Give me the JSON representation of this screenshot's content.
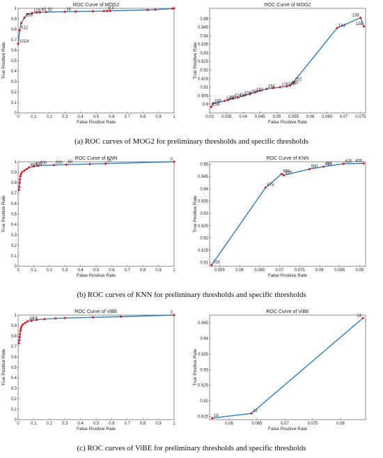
{
  "captions": {
    "a": "(a) ROC curves of MOG2 for preliminary thresholds and specific thresholds",
    "b": "(b) ROC curves of KNN for preliminary thresholds and specific thresholds",
    "c": "(c) ROC curves of ViBE for preliminary thresholds and specific thresholds"
  },
  "colors": {
    "line": "#2e7dc2",
    "marker": "#e02020",
    "axis": "#444444"
  },
  "chart_data": [
    {
      "id": "mog2-pre",
      "type": "line",
      "title": "ROC Curve of MOG2",
      "xlabel": "False Positive Rate",
      "ylabel": "True Positive Rate",
      "xlim": [
        0,
        1
      ],
      "ylim": [
        0,
        1
      ],
      "xticks": [
        0,
        0.1,
        0.2,
        0.3,
        0.4,
        0.5,
        0.6,
        0.7,
        0.8,
        0.9,
        1
      ],
      "xticklabels": [
        "0",
        "0.1",
        "0.2",
        "0.3",
        "0.4",
        "0.5",
        "0.6",
        "0.7",
        "0.8",
        "0.9",
        "1"
      ],
      "yticks": [
        0,
        0.1,
        0.2,
        0.3,
        0.4,
        0.5,
        0.6,
        0.7,
        0.8,
        0.9,
        1
      ],
      "yticklabels": [
        "0",
        "0.1",
        "0.2",
        "0.3",
        "0.4",
        "0.5",
        "0.6",
        "0.7",
        "0.8",
        "0.9",
        "1"
      ],
      "x": [
        0,
        0.01,
        0.02,
        0.04,
        0.06,
        0.09,
        0.12,
        0.14,
        0.18,
        0.3,
        0.37,
        0.48,
        0.55,
        0.57,
        0.59,
        0.83,
        0.88,
        0.99,
        1.0
      ],
      "y": [
        0.66,
        0.79,
        0.86,
        0.91,
        0.945,
        0.955,
        0.96,
        0.962,
        0.965,
        0.968,
        0.97,
        0.972,
        0.974,
        0.975,
        0.976,
        0.985,
        0.988,
        0.998,
        1.0
      ],
      "labels": [
        {
          "i": 0,
          "text": "1024"
        },
        {
          "i": 1,
          "text": "512"
        },
        {
          "i": 3,
          "text": "256"
        },
        {
          "i": 5,
          "text": "128"
        },
        {
          "i": 7,
          "text": "64"
        },
        {
          "i": 8,
          "text": "32"
        },
        {
          "i": 9,
          "text": "16"
        },
        {
          "i": 13,
          "text": "8"
        },
        {
          "i": 14,
          "text": "4"
        }
      ]
    },
    {
      "id": "mog2-spec",
      "type": "line",
      "title": "ROC Curve of MOG2",
      "xlabel": "False Positive Rate",
      "ylabel": "True Positive Rate",
      "xlim": [
        0.03,
        0.0765
      ],
      "ylim": [
        0.895,
        0.956
      ],
      "xticks": [
        0.03,
        0.035,
        0.04,
        0.045,
        0.05,
        0.055,
        0.06,
        0.065,
        0.07,
        0.075
      ],
      "xticklabels": [
        "0.03",
        "0.035",
        "0.04",
        "0.045",
        "0.05",
        "0.055",
        "0.06",
        "0.065",
        "0.07",
        "0.075"
      ],
      "yticks": [
        0.9,
        0.905,
        0.91,
        0.915,
        0.92,
        0.925,
        0.93,
        0.935,
        0.94,
        0.945,
        0.95
      ],
      "yticklabels": [
        "0.9",
        "0.905",
        "0.91",
        "0.915",
        "0.92",
        "0.925",
        "0.93",
        "0.935",
        "0.94",
        "0.945",
        "0.95"
      ],
      "x": [
        0.0305,
        0.031,
        0.0345,
        0.0355,
        0.037,
        0.0385,
        0.04,
        0.042,
        0.0435,
        0.045,
        0.047,
        0.049,
        0.051,
        0.053,
        0.054,
        0.055,
        0.068,
        0.075,
        0.076
      ],
      "y": [
        0.8985,
        0.9005,
        0.902,
        0.9025,
        0.9035,
        0.904,
        0.905,
        0.906,
        0.907,
        0.908,
        0.909,
        0.9095,
        0.91,
        0.9105,
        0.911,
        0.913,
        0.9445,
        0.9505,
        0.9455
      ],
      "labels": [
        {
          "i": 0,
          "text": "256"
        },
        {
          "i": 1,
          "text": "248"
        },
        {
          "i": 2,
          "text": "240"
        },
        {
          "i": 3,
          "text": "232"
        },
        {
          "i": 4,
          "text": "224"
        },
        {
          "i": 5,
          "text": "216"
        },
        {
          "i": 6,
          "text": "208"
        },
        {
          "i": 7,
          "text": "200"
        },
        {
          "i": 8,
          "text": "192"
        },
        {
          "i": 10,
          "text": "184"
        },
        {
          "i": 12,
          "text": "176"
        },
        {
          "i": 13,
          "text": "168"
        },
        {
          "i": 14,
          "text": "160"
        },
        {
          "i": 15,
          "text": "152"
        },
        {
          "i": 16,
          "text": "144"
        },
        {
          "i": 17,
          "text": "136"
        },
        {
          "i": 18,
          "text": "128"
        }
      ]
    },
    {
      "id": "knn-pre",
      "type": "line",
      "title": "ROC Curve of KNN",
      "xlabel": "False Positive Rate",
      "ylabel": "True Positive Rate",
      "xlim": [
        0,
        1
      ],
      "ylim": [
        0,
        1
      ],
      "xticks": [
        0,
        0.1,
        0.2,
        0.3,
        0.4,
        0.5,
        0.6,
        0.7,
        0.8,
        0.9,
        1
      ],
      "xticklabels": [
        "0",
        "0.1",
        "0.2",
        "0.3",
        "0.4",
        "0.5",
        "0.6",
        "0.7",
        "0.8",
        "0.9",
        "1"
      ],
      "yticks": [
        0,
        0.1,
        0.2,
        0.3,
        0.4,
        0.5,
        0.6,
        0.7,
        0.8,
        0.9,
        1
      ],
      "yticklabels": [
        "0",
        "0.1",
        "0.2",
        "0.3",
        "0.4",
        "0.5",
        "0.6",
        "0.7",
        "0.8",
        "0.9",
        "1"
      ],
      "x": [
        0.005,
        0.008,
        0.01,
        0.012,
        0.015,
        0.018,
        0.025,
        0.04,
        0.055,
        0.07,
        0.1,
        0.13,
        0.23,
        0.31,
        0.46,
        0.56,
        1.0
      ],
      "y": [
        0.73,
        0.76,
        0.8,
        0.83,
        0.86,
        0.88,
        0.9,
        0.915,
        0.93,
        0.945,
        0.955,
        0.962,
        0.968,
        0.972,
        0.978,
        0.982,
        1.0
      ],
      "labels": [
        {
          "i": 9,
          "text": "650"
        },
        {
          "i": 10,
          "text": "400"
        },
        {
          "i": 11,
          "text": "300"
        },
        {
          "i": 12,
          "text": "200"
        },
        {
          "i": 13,
          "text": "50"
        },
        {
          "i": 15,
          "text": "25"
        },
        {
          "i": 16,
          "text": "0"
        }
      ]
    },
    {
      "id": "knn-spec",
      "type": "line",
      "title": "ROC Curve of KNN",
      "xlabel": "False Positive Rate",
      "ylabel": "True Positive Rate",
      "xlim": [
        0.0525,
        0.0915
      ],
      "ylim": [
        0.9085,
        0.951
      ],
      "xticks": [
        0.055,
        0.06,
        0.065,
        0.07,
        0.075,
        0.08,
        0.085,
        0.09
      ],
      "xticklabels": [
        "0.055",
        "0.06",
        "0.065",
        "0.07",
        "0.075",
        "0.08",
        "0.085",
        "0.09"
      ],
      "yticks": [
        0.91,
        0.915,
        0.92,
        0.925,
        0.93,
        0.935,
        0.94,
        0.945,
        0.95
      ],
      "yticklabels": [
        "0.91",
        "0.915",
        "0.92",
        "0.925",
        "0.93",
        "0.935",
        "0.94",
        "0.945",
        "0.95"
      ],
      "x": [
        0.053,
        0.0665,
        0.0705,
        0.071,
        0.0775,
        0.081,
        0.086,
        0.091
      ],
      "y": [
        0.909,
        0.9405,
        0.946,
        0.9455,
        0.948,
        0.949,
        0.9502,
        0.9503
      ],
      "labels": [
        {
          "i": 0,
          "text": "700"
        },
        {
          "i": 1,
          "text": "575"
        },
        {
          "i": 2,
          "text": "550"
        },
        {
          "i": 3,
          "text": "525"
        },
        {
          "i": 4,
          "text": "500"
        },
        {
          "i": 5,
          "text": "475"
        },
        {
          "i": 5,
          "text": "450"
        },
        {
          "i": 6,
          "text": "425"
        },
        {
          "i": 7,
          "text": "400"
        }
      ]
    },
    {
      "id": "vibe-pre",
      "type": "line",
      "title": "ROC Curve of ViBE",
      "xlabel": "False Positive Rate",
      "ylabel": "True Positive Rate",
      "xlim": [
        0,
        1
      ],
      "ylim": [
        0,
        1
      ],
      "xticks": [
        0,
        0.1,
        0.2,
        0.3,
        0.4,
        0.5,
        0.6,
        0.7,
        0.8,
        0.9,
        1
      ],
      "xticklabels": [
        "0",
        "0.1",
        "0.2",
        "0.3",
        "0.4",
        "0.5",
        "0.6",
        "0.7",
        "0.8",
        "0.9",
        "1"
      ],
      "yticks": [
        0,
        0.1,
        0.2,
        0.3,
        0.4,
        0.5,
        0.6,
        0.7,
        0.8,
        0.9,
        1
      ],
      "yticklabels": [
        "0",
        "0.1",
        "0.2",
        "0.3",
        "0.4",
        "0.5",
        "0.6",
        "0.7",
        "0.8",
        "0.9",
        "1"
      ],
      "x": [
        0.005,
        0.008,
        0.01,
        0.012,
        0.015,
        0.018,
        0.022,
        0.03,
        0.045,
        0.06,
        0.085,
        0.12,
        0.17,
        0.24,
        0.3,
        0.48,
        0.66,
        1.0
      ],
      "y": [
        0.73,
        0.76,
        0.79,
        0.82,
        0.85,
        0.87,
        0.89,
        0.91,
        0.925,
        0.94,
        0.946,
        0.955,
        0.962,
        0.968,
        0.972,
        0.978,
        0.985,
        1.0
      ],
      "labels": [
        {
          "i": 9,
          "text": "16"
        },
        {
          "i": 10,
          "text": "14"
        },
        {
          "i": 17,
          "text": "0"
        }
      ]
    },
    {
      "id": "vibe-spec",
      "type": "line",
      "title": "ROC Curve of ViBE",
      "xlabel": "False Positive Rate",
      "ylabel": "True Positive Rate",
      "xlim": [
        0.0565,
        0.0845
      ],
      "ylim": [
        0.914,
        0.9475
      ],
      "xticks": [
        0.06,
        0.065,
        0.07,
        0.075,
        0.08
      ],
      "xticklabels": [
        "0.06",
        "0.065",
        "0.07",
        "0.075",
        "0.08"
      ],
      "yticks": [
        0.915,
        0.92,
        0.925,
        0.93,
        0.935,
        0.94,
        0.945
      ],
      "yticklabels": [
        "0.915",
        "0.92",
        "0.925",
        "0.93",
        "0.935",
        "0.94",
        "0.945"
      ],
      "x": [
        0.057,
        0.064,
        0.084
      ],
      "y": [
        0.9145,
        0.916,
        0.9465
      ],
      "labels": [
        {
          "i": 0,
          "text": "16"
        },
        {
          "i": 1,
          "text": "15"
        },
        {
          "i": 2,
          "text": "14"
        }
      ]
    }
  ]
}
